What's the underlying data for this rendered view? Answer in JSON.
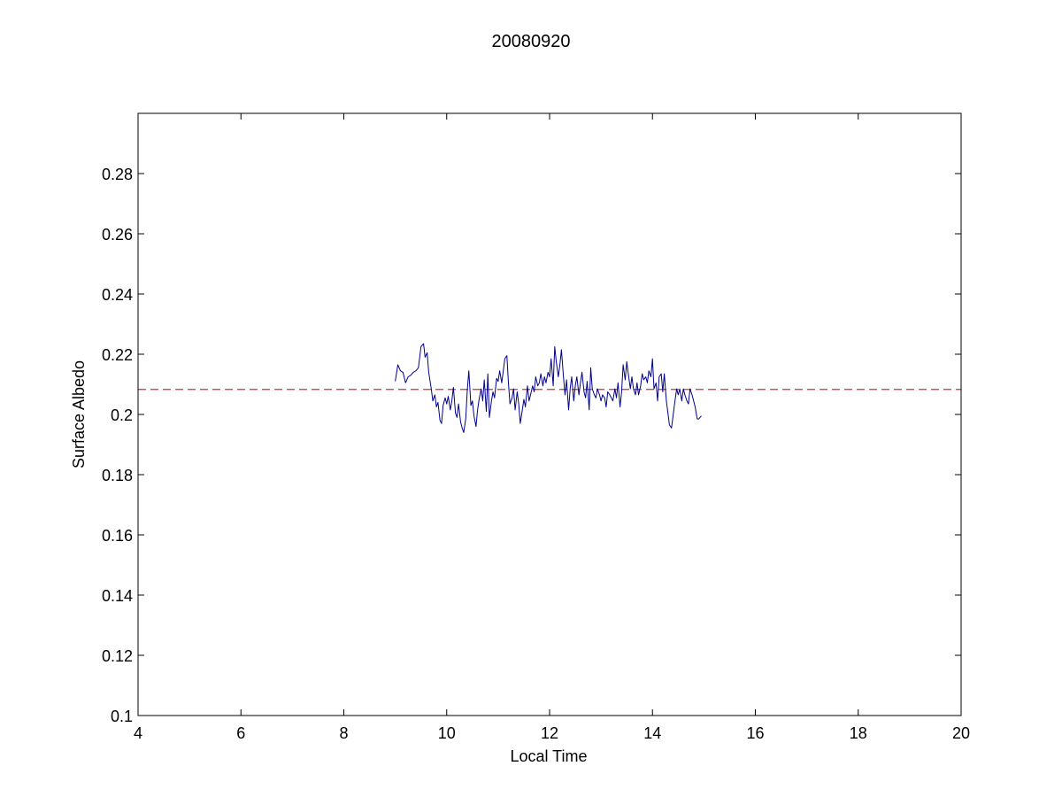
{
  "chart_data": {
    "type": "line",
    "title": "20080920",
    "xlabel": "Local Time",
    "ylabel": "Surface Albedo",
    "xlim": [
      4,
      20
    ],
    "ylim": [
      0.1,
      0.3
    ],
    "xticks": [
      4,
      6,
      8,
      10,
      12,
      14,
      16,
      18,
      20
    ],
    "xtick_labels": [
      "4",
      "6",
      "8",
      "10",
      "12",
      "14",
      "16",
      "18",
      "20"
    ],
    "yticks": [
      0.1,
      0.12,
      0.14,
      0.16,
      0.18,
      0.2,
      0.22,
      0.24,
      0.26,
      0.28
    ],
    "ytick_labels": [
      "0.1",
      "0.12",
      "0.14",
      "0.16",
      "0.18",
      "0.2",
      "0.22",
      "0.24",
      "0.26",
      "0.28"
    ],
    "grid": false,
    "reference_line": {
      "y": 0.2083,
      "style": "dashed",
      "color": "#cc3333"
    },
    "series": [
      {
        "color": "#00008b",
        "points": [
          [
            9.0,
            0.211
          ],
          [
            9.05,
            0.2165
          ],
          [
            9.1,
            0.2145
          ],
          [
            9.15,
            0.214
          ],
          [
            9.2,
            0.2105
          ],
          [
            9.25,
            0.2125
          ],
          [
            9.3,
            0.213
          ],
          [
            9.35,
            0.214
          ],
          [
            9.4,
            0.2145
          ],
          [
            9.45,
            0.2155
          ],
          [
            9.5,
            0.2225
          ],
          [
            9.55,
            0.2235
          ],
          [
            9.58,
            0.219
          ],
          [
            9.62,
            0.2205
          ],
          [
            9.65,
            0.214
          ],
          [
            9.7,
            0.2085
          ],
          [
            9.73,
            0.2045
          ],
          [
            9.77,
            0.2065
          ],
          [
            9.8,
            0.2025
          ],
          [
            9.83,
            0.204
          ],
          [
            9.87,
            0.198
          ],
          [
            9.9,
            0.197
          ],
          [
            9.93,
            0.203
          ],
          [
            9.97,
            0.2055
          ],
          [
            10.0,
            0.2035
          ],
          [
            10.03,
            0.206
          ],
          [
            10.07,
            0.2015
          ],
          [
            10.1,
            0.2045
          ],
          [
            10.13,
            0.209
          ],
          [
            10.17,
            0.2005
          ],
          [
            10.2,
            0.199
          ],
          [
            10.23,
            0.2035
          ],
          [
            10.27,
            0.1975
          ],
          [
            10.3,
            0.1955
          ],
          [
            10.33,
            0.194
          ],
          [
            10.37,
            0.1985
          ],
          [
            10.4,
            0.208
          ],
          [
            10.43,
            0.2145
          ],
          [
            10.47,
            0.203
          ],
          [
            10.5,
            0.2045
          ],
          [
            10.53,
            0.1995
          ],
          [
            10.57,
            0.196
          ],
          [
            10.6,
            0.2015
          ],
          [
            10.63,
            0.205
          ],
          [
            10.67,
            0.2085
          ],
          [
            10.7,
            0.2045
          ],
          [
            10.73,
            0.2115
          ],
          [
            10.77,
            0.201
          ],
          [
            10.8,
            0.2135
          ],
          [
            10.83,
            0.199
          ],
          [
            10.87,
            0.2045
          ],
          [
            10.9,
            0.2075
          ],
          [
            10.93,
            0.2055
          ],
          [
            10.97,
            0.212
          ],
          [
            11.0,
            0.211
          ],
          [
            11.03,
            0.2145
          ],
          [
            11.07,
            0.2105
          ],
          [
            11.1,
            0.2145
          ],
          [
            11.13,
            0.2185
          ],
          [
            11.17,
            0.2195
          ],
          [
            11.2,
            0.2105
          ],
          [
            11.23,
            0.2035
          ],
          [
            11.27,
            0.2055
          ],
          [
            11.3,
            0.2085
          ],
          [
            11.33,
            0.2015
          ],
          [
            11.37,
            0.2075
          ],
          [
            11.4,
            0.2035
          ],
          [
            11.43,
            0.197
          ],
          [
            11.47,
            0.2015
          ],
          [
            11.5,
            0.205
          ],
          [
            11.53,
            0.2025
          ],
          [
            11.57,
            0.2095
          ],
          [
            11.6,
            0.2045
          ],
          [
            11.63,
            0.2065
          ],
          [
            11.67,
            0.2095
          ],
          [
            11.7,
            0.2075
          ],
          [
            11.73,
            0.2125
          ],
          [
            11.77,
            0.2095
          ],
          [
            11.8,
            0.2105
          ],
          [
            11.83,
            0.2135
          ],
          [
            11.87,
            0.2095
          ],
          [
            11.9,
            0.2125
          ],
          [
            11.93,
            0.2105
          ],
          [
            11.97,
            0.214
          ],
          [
            12.0,
            0.2125
          ],
          [
            12.03,
            0.2185
          ],
          [
            12.07,
            0.2095
          ],
          [
            12.1,
            0.2225
          ],
          [
            12.13,
            0.2175
          ],
          [
            12.17,
            0.2125
          ],
          [
            12.2,
            0.2165
          ],
          [
            12.23,
            0.2215
          ],
          [
            12.27,
            0.2125
          ],
          [
            12.3,
            0.2065
          ],
          [
            12.33,
            0.2115
          ],
          [
            12.37,
            0.2015
          ],
          [
            12.4,
            0.2085
          ],
          [
            12.43,
            0.2125
          ],
          [
            12.47,
            0.2045
          ],
          [
            12.5,
            0.2095
          ],
          [
            12.53,
            0.2125
          ],
          [
            12.57,
            0.2065
          ],
          [
            12.6,
            0.2105
          ],
          [
            12.63,
            0.214
          ],
          [
            12.67,
            0.2075
          ],
          [
            12.7,
            0.2055
          ],
          [
            12.73,
            0.211
          ],
          [
            12.77,
            0.2015
          ],
          [
            12.8,
            0.2155
          ],
          [
            12.83,
            0.2085
          ],
          [
            12.87,
            0.2065
          ],
          [
            12.9,
            0.2055
          ],
          [
            12.93,
            0.2085
          ],
          [
            12.97,
            0.2065
          ],
          [
            13.0,
            0.2045
          ],
          [
            13.03,
            0.2065
          ],
          [
            13.07,
            0.2055
          ],
          [
            13.1,
            0.2025
          ],
          [
            13.13,
            0.2075
          ],
          [
            13.17,
            0.2065
          ],
          [
            13.2,
            0.2055
          ],
          [
            13.23,
            0.2045
          ],
          [
            13.27,
            0.2085
          ],
          [
            13.3,
            0.2055
          ],
          [
            13.33,
            0.2105
          ],
          [
            13.37,
            0.2025
          ],
          [
            13.4,
            0.2075
          ],
          [
            13.43,
            0.2165
          ],
          [
            13.47,
            0.2115
          ],
          [
            13.5,
            0.2175
          ],
          [
            13.53,
            0.2135
          ],
          [
            13.57,
            0.2085
          ],
          [
            13.6,
            0.2125
          ],
          [
            13.63,
            0.2085
          ],
          [
            13.67,
            0.2065
          ],
          [
            13.7,
            0.2105
          ],
          [
            13.73,
            0.2065
          ],
          [
            13.77,
            0.2095
          ],
          [
            13.8,
            0.2135
          ],
          [
            13.83,
            0.2115
          ],
          [
            13.87,
            0.2125
          ],
          [
            13.9,
            0.2105
          ],
          [
            13.93,
            0.2145
          ],
          [
            13.97,
            0.2125
          ],
          [
            14.0,
            0.2185
          ],
          [
            14.03,
            0.2085
          ],
          [
            14.07,
            0.2105
          ],
          [
            14.1,
            0.2045
          ],
          [
            14.13,
            0.2125
          ],
          [
            14.17,
            0.2135
          ],
          [
            14.2,
            0.2075
          ],
          [
            14.23,
            0.2135
          ],
          [
            14.27,
            0.2045
          ],
          [
            14.3,
            0.2005
          ],
          [
            14.33,
            0.1965
          ],
          [
            14.37,
            0.1955
          ],
          [
            14.4,
            0.1995
          ],
          [
            14.43,
            0.2035
          ],
          [
            14.47,
            0.2085
          ],
          [
            14.5,
            0.2065
          ],
          [
            14.53,
            0.2085
          ],
          [
            14.57,
            0.2045
          ],
          [
            14.6,
            0.2085
          ],
          [
            14.63,
            0.2065
          ],
          [
            14.67,
            0.2045
          ],
          [
            14.7,
            0.2035
          ],
          [
            14.73,
            0.2085
          ],
          [
            14.77,
            0.2065
          ],
          [
            14.8,
            0.2045
          ],
          [
            14.83,
            0.2025
          ],
          [
            14.87,
            0.1985
          ],
          [
            14.9,
            0.1985
          ],
          [
            14.95,
            0.1995
          ]
        ]
      }
    ]
  }
}
